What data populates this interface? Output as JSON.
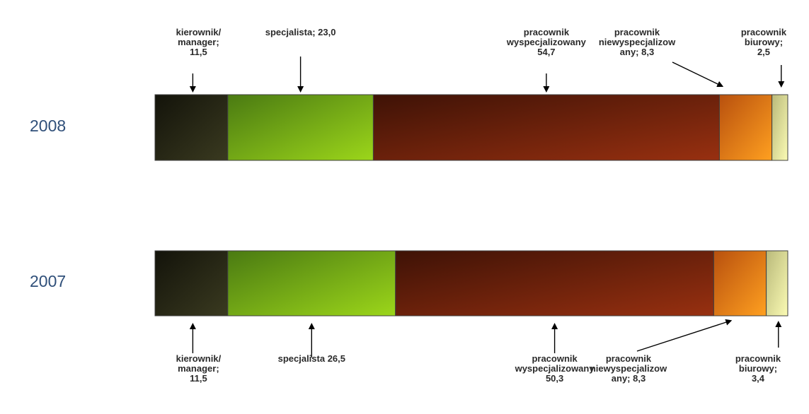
{
  "chart_data": {
    "type": "stacked-bar-horizontal",
    "categories": [
      "2008",
      "2007"
    ],
    "series": [
      {
        "name": "kierownik/ manager",
        "values": [
          11.5,
          11.5
        ],
        "color": "#2a2a15"
      },
      {
        "name": "specjalista",
        "values": [
          23.0,
          26.5
        ],
        "color": "#8ccf16"
      },
      {
        "name": "pracownik wyspecjalizowany",
        "values": [
          54.7,
          50.3
        ],
        "color": "#7a2208"
      },
      {
        "name": "pracownik niewyspecjalizowany",
        "values": [
          8.3,
          8.3
        ],
        "color": "#f08a14"
      },
      {
        "name": "pracownik biurowy",
        "values": [
          2.5,
          3.4
        ],
        "color": "#eeeea0"
      }
    ],
    "labels": {
      "2008": [
        [
          "kierownik/",
          "manager;",
          "11,5"
        ],
        [
          "specjalista; 23,0"
        ],
        [
          "pracownik",
          "wyspecjalizowany",
          "54,7"
        ],
        [
          "pracownik",
          "niewyspecjalizow",
          "any; 8,3"
        ],
        [
          "pracownik",
          "biurowy;",
          "2,5"
        ]
      ],
      "2007": [
        [
          "kierownik/",
          "manager;",
          "11,5"
        ],
        [
          "specjalista 26,5"
        ],
        [
          "pracownik",
          "wyspecjalizowany",
          "50,3"
        ],
        [
          "pracownik",
          "niewyspecjalizow",
          "any; 8,3"
        ],
        [
          "pracownik",
          "biurowy;",
          "3,4"
        ]
      ]
    },
    "title": "",
    "xlabel": "",
    "ylabel": ""
  }
}
